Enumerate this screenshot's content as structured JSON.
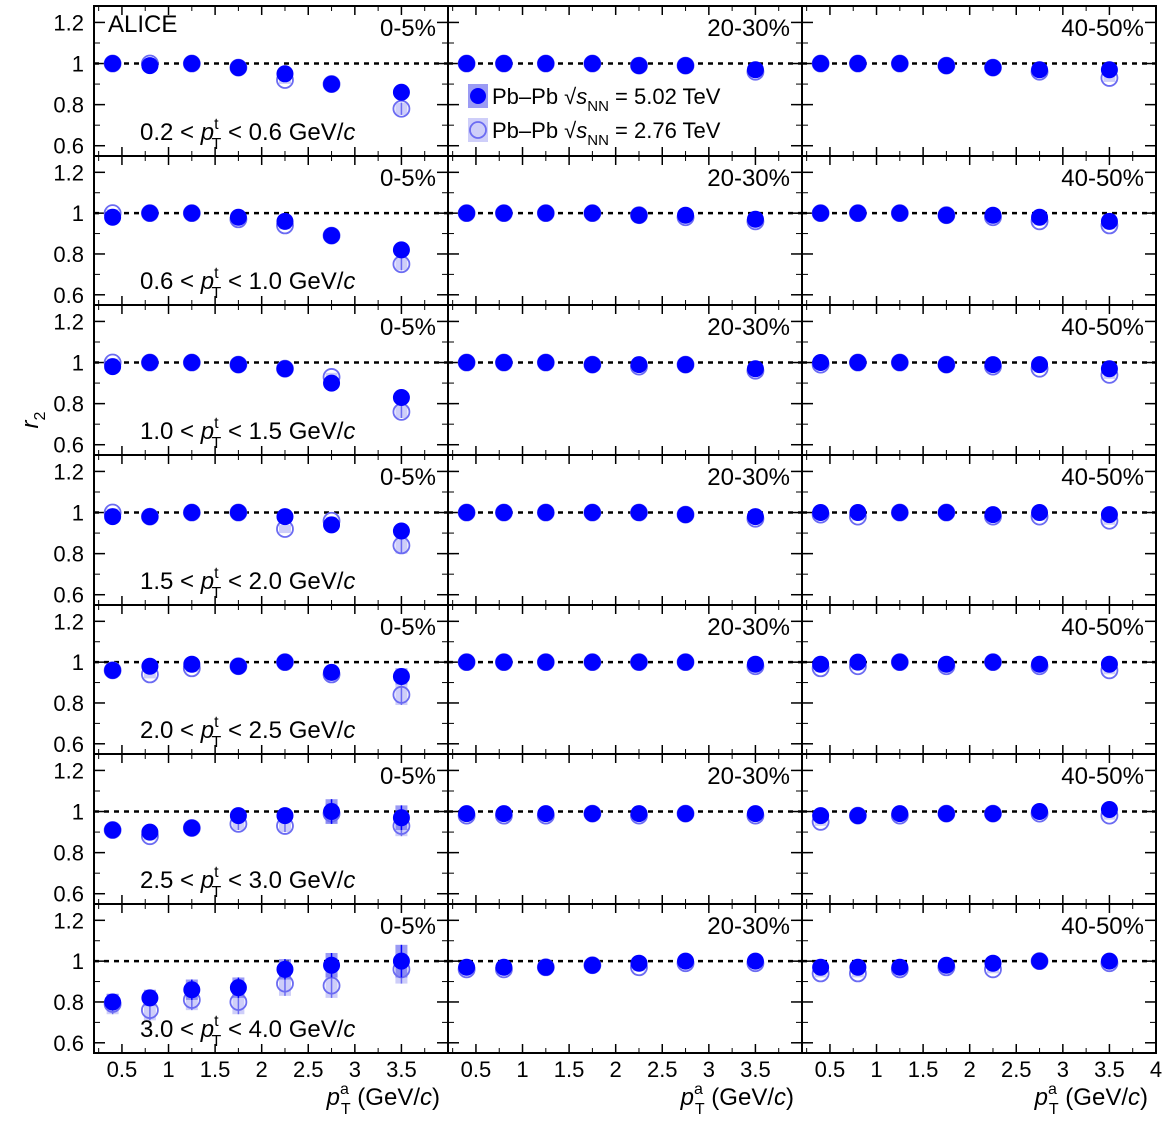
{
  "chart_data": {
    "type": "scatter",
    "experiment": "ALICE",
    "ylabel": "r",
    "ylabel_sub": "2",
    "xlabel": {
      "p": "p",
      "sup": "a",
      "sub": "T",
      "open": " (GeV/",
      "c": "c",
      "close": ")"
    },
    "ylim": [
      0.55,
      1.28
    ],
    "xlim": [
      0.2,
      4.0
    ],
    "y_ticks": [
      "0.6",
      "0.8",
      "1",
      "1.2"
    ],
    "y_tick_values": [
      0.6,
      0.8,
      1.0,
      1.2
    ],
    "x_ticks": [
      "0.5",
      "1",
      "1.5",
      "2",
      "2.5",
      "3",
      "3.5",
      "4"
    ],
    "x_tick_values": [
      0.5,
      1.0,
      1.5,
      2.0,
      2.5,
      3.0,
      3.5,
      4.0
    ],
    "reference_line": 1.0,
    "columns": [
      "0-5%",
      "20-30%",
      "40-50%"
    ],
    "rows": [
      {
        "lo": "0.2",
        "hi": "0.6"
      },
      {
        "lo": "0.6",
        "hi": "1.0"
      },
      {
        "lo": "1.0",
        "hi": "1.5"
      },
      {
        "lo": "1.5",
        "hi": "2.0"
      },
      {
        "lo": "2.0",
        "hi": "2.5"
      },
      {
        "lo": "2.5",
        "hi": "3.0"
      },
      {
        "lo": "3.0",
        "hi": "4.0"
      }
    ],
    "bin_label_parts": {
      "lt": " < ",
      "p": "p",
      "sup": "t",
      "sub": "T",
      "unit": " GeV/",
      "c": "c"
    },
    "x": [
      0.4,
      0.8,
      1.25,
      1.75,
      2.25,
      2.75,
      3.5
    ],
    "legend": [
      {
        "system": "Pb–Pb",
        "sqrt": "√",
        "s": "s",
        "sub": "NN",
        "eq": " =  5.02 TeV"
      },
      {
        "system": "Pb–Pb",
        "sqrt": "√",
        "s": "s",
        "sub": "NN",
        "eq": " = 2.76 TeV"
      }
    ],
    "series": [
      {
        "energy": "5.02 TeV",
        "style": "filled",
        "color": "#0000ff",
        "band_color": "#7070f0",
        "values": [
          [
            [
              1.0,
              0.99,
              1.0,
              0.98,
              0.95,
              0.9,
              0.86
            ],
            [
              1.0,
              1.0,
              1.0,
              1.0,
              0.99,
              0.99,
              0.97
            ],
            [
              1.0,
              1.0,
              1.0,
              0.99,
              0.98,
              0.97,
              0.97
            ]
          ],
          [
            [
              0.98,
              1.0,
              1.0,
              0.98,
              0.96,
              0.89,
              0.82
            ],
            [
              1.0,
              1.0,
              1.0,
              1.0,
              0.99,
              0.99,
              0.97
            ],
            [
              1.0,
              1.0,
              1.0,
              0.99,
              0.99,
              0.98,
              0.96
            ]
          ],
          [
            [
              0.98,
              1.0,
              1.0,
              0.99,
              0.97,
              0.9,
              0.83
            ],
            [
              1.0,
              1.0,
              1.0,
              0.99,
              0.99,
              0.99,
              0.97
            ],
            [
              1.0,
              1.0,
              1.0,
              0.99,
              0.99,
              0.99,
              0.97
            ]
          ],
          [
            [
              0.98,
              0.98,
              1.0,
              1.0,
              0.98,
              0.94,
              0.91
            ],
            [
              1.0,
              1.0,
              1.0,
              1.0,
              1.0,
              0.99,
              0.98
            ],
            [
              1.0,
              1.0,
              1.0,
              1.0,
              0.99,
              1.0,
              0.99
            ]
          ],
          [
            [
              0.96,
              0.98,
              0.99,
              0.98,
              1.0,
              0.95,
              0.93
            ],
            [
              1.0,
              1.0,
              1.0,
              1.0,
              1.0,
              1.0,
              0.99
            ],
            [
              0.99,
              1.0,
              1.0,
              0.99,
              1.0,
              0.99,
              0.99
            ]
          ],
          [
            [
              0.91,
              0.9,
              0.92,
              0.98,
              0.98,
              1.0,
              0.97
            ],
            [
              0.99,
              0.99,
              0.99,
              0.99,
              0.99,
              0.99,
              0.99
            ],
            [
              0.98,
              0.98,
              0.99,
              0.99,
              0.99,
              1.0,
              1.01
            ]
          ],
          [
            [
              0.8,
              0.82,
              0.86,
              0.87,
              0.96,
              0.98,
              1.0
            ],
            [
              0.97,
              0.97,
              0.97,
              0.98,
              0.99,
              1.0,
              1.0
            ],
            [
              0.97,
              0.97,
              0.97,
              0.98,
              0.99,
              1.0,
              1.0
            ]
          ]
        ],
        "errors": [
          [
            [
              0.01,
              0.01,
              0.01,
              0.01,
              0.01,
              0.01,
              0.02
            ],
            [
              0.01,
              0.01,
              0.01,
              0.01,
              0.01,
              0.01,
              0.01
            ],
            [
              0.01,
              0.01,
              0.01,
              0.01,
              0.01,
              0.01,
              0.01
            ]
          ],
          [
            [
              0.01,
              0.01,
              0.01,
              0.01,
              0.01,
              0.01,
              0.02
            ],
            [
              0.01,
              0.01,
              0.01,
              0.01,
              0.01,
              0.01,
              0.01
            ],
            [
              0.01,
              0.01,
              0.01,
              0.01,
              0.01,
              0.01,
              0.01
            ]
          ],
          [
            [
              0.01,
              0.01,
              0.01,
              0.01,
              0.01,
              0.01,
              0.02
            ],
            [
              0.01,
              0.01,
              0.01,
              0.01,
              0.01,
              0.01,
              0.01
            ],
            [
              0.01,
              0.01,
              0.01,
              0.01,
              0.01,
              0.01,
              0.01
            ]
          ],
          [
            [
              0.01,
              0.01,
              0.01,
              0.01,
              0.01,
              0.02,
              0.03
            ],
            [
              0.01,
              0.01,
              0.01,
              0.01,
              0.01,
              0.01,
              0.01
            ],
            [
              0.01,
              0.01,
              0.01,
              0.01,
              0.01,
              0.01,
              0.01
            ]
          ],
          [
            [
              0.01,
              0.01,
              0.01,
              0.01,
              0.02,
              0.02,
              0.04
            ],
            [
              0.01,
              0.01,
              0.01,
              0.01,
              0.01,
              0.01,
              0.01
            ],
            [
              0.01,
              0.01,
              0.01,
              0.01,
              0.01,
              0.01,
              0.01
            ]
          ],
          [
            [
              0.02,
              0.02,
              0.02,
              0.03,
              0.03,
              0.06,
              0.06
            ],
            [
              0.01,
              0.01,
              0.01,
              0.01,
              0.01,
              0.01,
              0.01
            ],
            [
              0.01,
              0.01,
              0.01,
              0.01,
              0.01,
              0.01,
              0.01
            ]
          ],
          [
            [
              0.04,
              0.04,
              0.05,
              0.05,
              0.05,
              0.06,
              0.08
            ],
            [
              0.01,
              0.01,
              0.01,
              0.01,
              0.01,
              0.01,
              0.01
            ],
            [
              0.01,
              0.01,
              0.01,
              0.01,
              0.01,
              0.01,
              0.01
            ]
          ]
        ]
      },
      {
        "energy": "2.76 TeV",
        "style": "open",
        "color": "#6b6bf2",
        "band_color": "#b9b9f7",
        "values": [
          [
            [
              1.0,
              1.0,
              1.0,
              0.98,
              0.92,
              0.9,
              0.78
            ],
            [
              1.0,
              1.0,
              1.0,
              1.0,
              0.99,
              0.99,
              0.96
            ],
            [
              1.0,
              1.0,
              1.0,
              0.99,
              0.98,
              0.96,
              0.93
            ]
          ],
          [
            [
              1.0,
              1.0,
              1.0,
              0.97,
              0.94,
              0.89,
              0.75
            ],
            [
              1.0,
              1.0,
              1.0,
              1.0,
              0.99,
              0.98,
              0.96
            ],
            [
              1.0,
              1.0,
              1.0,
              0.99,
              0.98,
              0.96,
              0.94
            ]
          ],
          [
            [
              1.0,
              1.0,
              1.0,
              0.99,
              0.97,
              0.93,
              0.76
            ],
            [
              1.0,
              1.0,
              1.0,
              0.99,
              0.98,
              0.99,
              0.96
            ],
            [
              0.99,
              1.0,
              1.0,
              0.99,
              0.98,
              0.97,
              0.94
            ]
          ],
          [
            [
              1.0,
              0.98,
              1.0,
              1.0,
              0.92,
              0.96,
              0.84
            ],
            [
              1.0,
              1.0,
              1.0,
              1.0,
              1.0,
              0.99,
              0.97
            ],
            [
              0.99,
              0.98,
              1.0,
              1.0,
              0.98,
              0.98,
              0.96
            ]
          ],
          [
            [
              0.96,
              0.94,
              0.97,
              0.98,
              1.0,
              0.94,
              0.84
            ],
            [
              1.0,
              1.0,
              1.0,
              1.0,
              1.0,
              1.0,
              0.98
            ],
            [
              0.97,
              0.98,
              1.0,
              0.98,
              1.0,
              0.98,
              0.96
            ]
          ],
          [
            [
              0.91,
              0.88,
              0.92,
              0.94,
              0.93,
              0.99,
              0.93
            ],
            [
              0.98,
              0.98,
              0.98,
              0.99,
              0.98,
              0.99,
              0.98
            ],
            [
              0.95,
              0.98,
              0.98,
              0.99,
              0.99,
              0.99,
              0.98
            ]
          ],
          [
            [
              0.79,
              0.76,
              0.81,
              0.8,
              0.89,
              0.88,
              0.96
            ],
            [
              0.96,
              0.96,
              0.97,
              0.98,
              0.97,
              0.99,
              0.99
            ],
            [
              0.94,
              0.94,
              0.96,
              0.97,
              0.96,
              1.0,
              0.99
            ]
          ]
        ],
        "errors": [
          [
            [
              0.01,
              0.01,
              0.01,
              0.01,
              0.01,
              0.01,
              0.03
            ],
            [
              0.01,
              0.01,
              0.01,
              0.01,
              0.01,
              0.01,
              0.01
            ],
            [
              0.01,
              0.01,
              0.01,
              0.01,
              0.01,
              0.01,
              0.01
            ]
          ],
          [
            [
              0.01,
              0.01,
              0.01,
              0.01,
              0.01,
              0.01,
              0.03
            ],
            [
              0.01,
              0.01,
              0.01,
              0.01,
              0.01,
              0.01,
              0.01
            ],
            [
              0.01,
              0.01,
              0.01,
              0.01,
              0.01,
              0.01,
              0.01
            ]
          ],
          [
            [
              0.01,
              0.01,
              0.01,
              0.01,
              0.01,
              0.02,
              0.03
            ],
            [
              0.01,
              0.01,
              0.01,
              0.01,
              0.01,
              0.01,
              0.01
            ],
            [
              0.01,
              0.01,
              0.01,
              0.01,
              0.01,
              0.01,
              0.01
            ]
          ],
          [
            [
              0.01,
              0.01,
              0.01,
              0.01,
              0.02,
              0.02,
              0.04
            ],
            [
              0.01,
              0.01,
              0.01,
              0.01,
              0.01,
              0.01,
              0.01
            ],
            [
              0.01,
              0.01,
              0.01,
              0.01,
              0.01,
              0.01,
              0.01
            ]
          ],
          [
            [
              0.01,
              0.01,
              0.01,
              0.02,
              0.02,
              0.03,
              0.05
            ],
            [
              0.01,
              0.01,
              0.01,
              0.01,
              0.01,
              0.01,
              0.01
            ],
            [
              0.01,
              0.01,
              0.01,
              0.01,
              0.01,
              0.01,
              0.01
            ]
          ],
          [
            [
              0.02,
              0.02,
              0.02,
              0.03,
              0.03,
              0.05,
              0.05
            ],
            [
              0.01,
              0.01,
              0.01,
              0.01,
              0.01,
              0.01,
              0.01
            ],
            [
              0.01,
              0.01,
              0.01,
              0.01,
              0.01,
              0.01,
              0.01
            ]
          ],
          [
            [
              0.05,
              0.05,
              0.05,
              0.06,
              0.06,
              0.06,
              0.07
            ],
            [
              0.01,
              0.01,
              0.01,
              0.01,
              0.01,
              0.01,
              0.01
            ],
            [
              0.01,
              0.01,
              0.01,
              0.01,
              0.01,
              0.01,
              0.01
            ]
          ]
        ]
      }
    ]
  }
}
